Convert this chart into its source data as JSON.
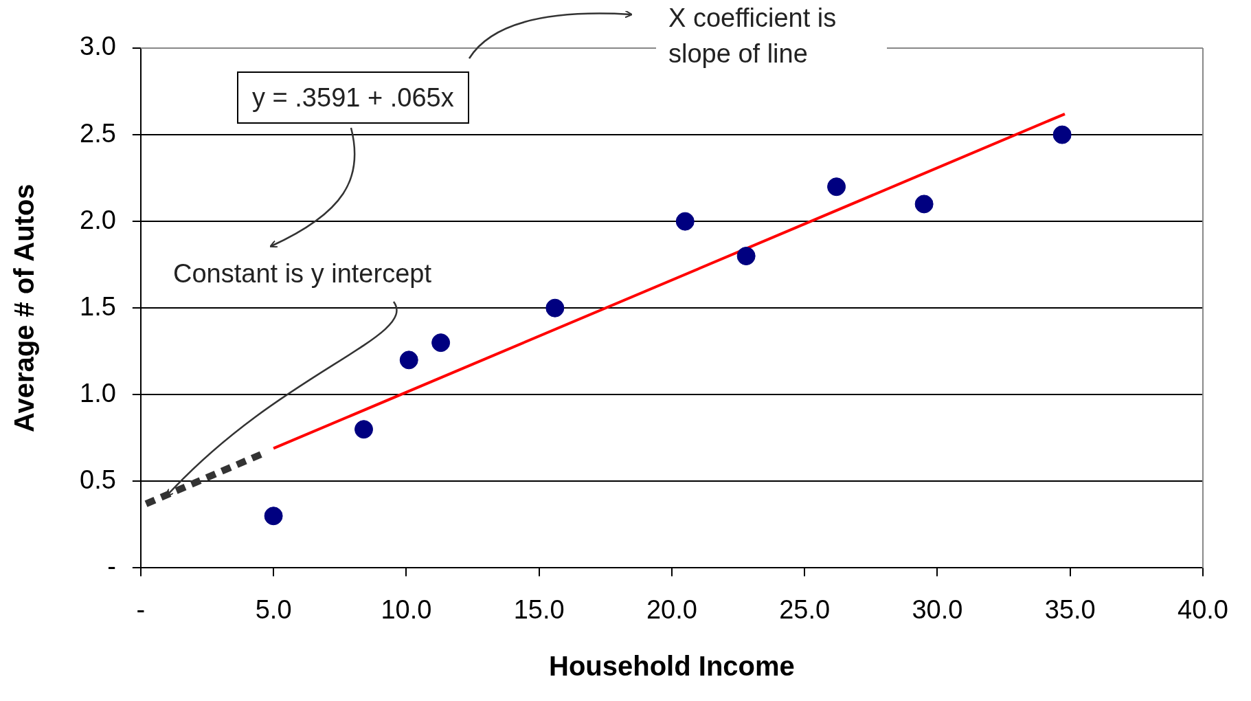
{
  "chart_data": {
    "type": "scatter",
    "xlabel": "Household Income",
    "ylabel": "Average # of Autos",
    "annotations": [
      "y = .3591 + .065x",
      "X coefficient is slope of line",
      {
        "text": "Constant is y intercept",
        "x": 1.0,
        "y": 0.42
      }
    ],
    "xlim": [
      0,
      40
    ],
    "ylim": [
      0,
      3
    ],
    "xticks": [
      {
        "value": 0,
        "label": "-"
      },
      {
        "value": 5,
        "label": "5.0"
      },
      {
        "value": 10,
        "label": "10.0"
      },
      {
        "value": 15,
        "label": "15.0"
      },
      {
        "value": 20,
        "label": "20.0"
      },
      {
        "value": 25,
        "label": "25.0"
      },
      {
        "value": 30,
        "label": "30.0"
      },
      {
        "value": 35,
        "label": "35.0"
      },
      {
        "value": 40,
        "label": "40.0"
      }
    ],
    "yticks": [
      {
        "value": 0,
        "label": "-"
      },
      {
        "value": 0.5,
        "label": "0.5"
      },
      {
        "value": 1,
        "label": "1.0"
      },
      {
        "value": 1.5,
        "label": "1.5"
      },
      {
        "value": 2,
        "label": "2.0"
      },
      {
        "value": 2.5,
        "label": "2.5"
      },
      {
        "value": 3,
        "label": "3.0"
      }
    ],
    "grid": "y",
    "legend": false,
    "marker": "circle",
    "series": [
      {
        "color": "#000080",
        "x": [
          5,
          8.4,
          10.1,
          11.3,
          15.6,
          20.5,
          22.8,
          26.2,
          29.5,
          34.7
        ],
        "values": [
          0.3,
          0.8,
          1.2,
          1.3,
          1.5,
          2.0,
          1.8,
          2.2,
          2.1,
          2.5
        ]
      },
      {
        "type": "line",
        "color": "#ff0000",
        "marker": "none",
        "line_style": "solid",
        "x": [
          5,
          34.8
        ],
        "values": [
          0.69,
          2.62
        ]
      },
      {
        "type": "line",
        "color": "#333333",
        "marker": "none",
        "line_style": "dashed",
        "x": [
          0.2,
          4.6
        ],
        "values": [
          0.37,
          0.66
        ]
      }
    ]
  }
}
